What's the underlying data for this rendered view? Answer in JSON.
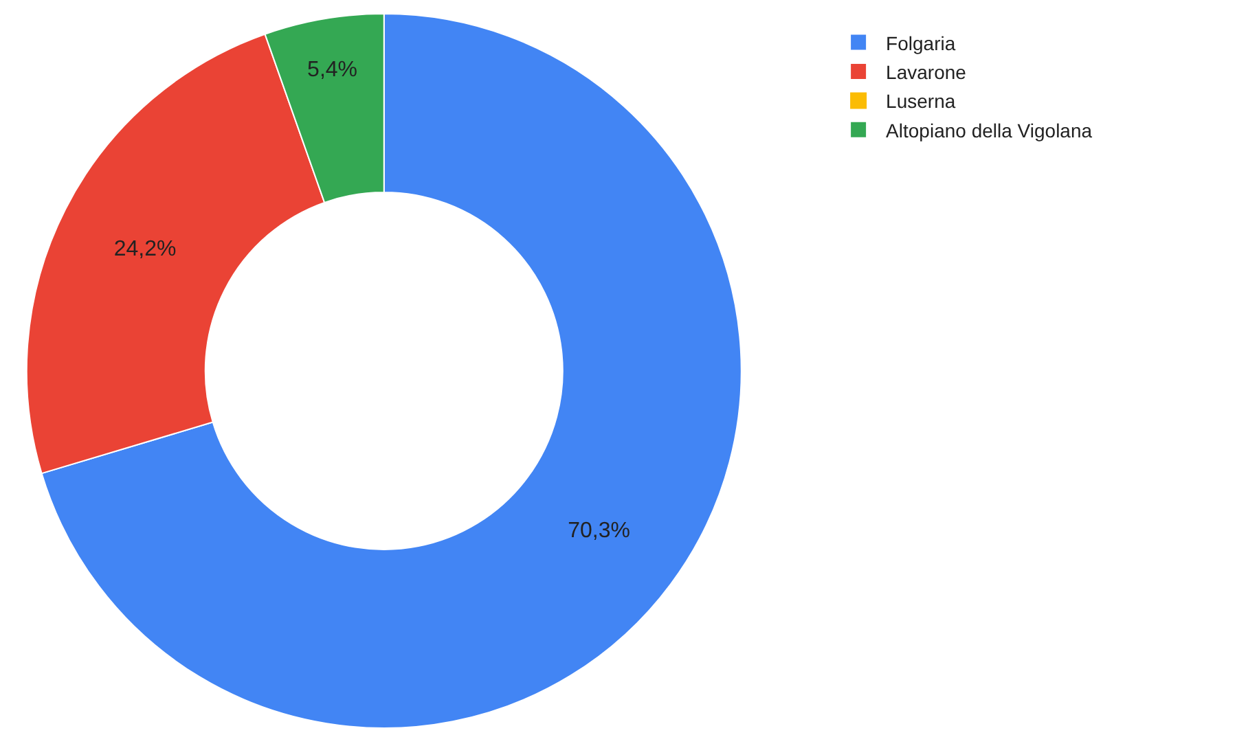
{
  "chart_data": {
    "type": "donut",
    "categories": [
      "Folgaria",
      "Lavarone",
      "Luserna",
      "Altopiano della Vigolana"
    ],
    "values": [
      70.3,
      24.2,
      0,
      5.4
    ],
    "value_labels": [
      "70,3%",
      "24,2%",
      null,
      "5,4%"
    ],
    "colors": [
      "#4285f4",
      "#ea4335",
      "#fbbc04",
      "#34a853"
    ],
    "legend": "top right"
  }
}
